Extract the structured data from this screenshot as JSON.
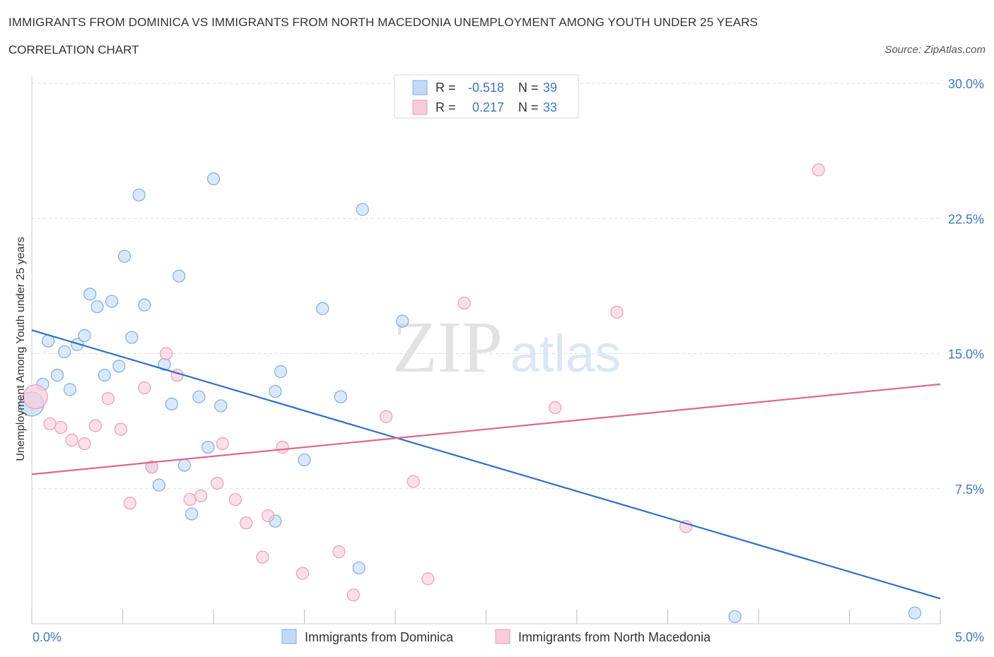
{
  "header": {
    "title": "IMMIGRANTS FROM DOMINICA VS IMMIGRANTS FROM NORTH MACEDONIA UNEMPLOYMENT AMONG YOUTH UNDER 25 YEARS",
    "subtitle": "CORRELATION CHART",
    "source": "Source: ZipAtlas.com"
  },
  "watermark": {
    "zip": "ZIP",
    "atlas": "atlas"
  },
  "colors": {
    "blue": "#7aaee6",
    "blue_fill": "#c2d9f5",
    "blue_line": "#2f6fcc",
    "pink": "#ee9ab5",
    "pink_fill": "#f8ccda",
    "pink_line": "#e0668f",
    "tick_label": "#3a78c9",
    "grid": "#dddddd"
  },
  "legend": {
    "rows": [
      {
        "r_label": "R =",
        "r_value": "-0.518",
        "n_label": "N =",
        "n_value": "39"
      },
      {
        "r_label": "R =",
        "r_value": "0.217",
        "n_label": "N =",
        "n_value": "33"
      }
    ]
  },
  "chart_data": {
    "type": "scatter",
    "title": "IMMIGRANTS FROM DOMINICA VS IMMIGRANTS FROM NORTH MACEDONIA UNEMPLOYMENT AMONG YOUTH UNDER 25 YEARS",
    "xlabel": "",
    "ylabel": "Unemployment Among Youth under 25 years",
    "xlim": [
      0,
      5
    ],
    "ylim": [
      0,
      30
    ],
    "x_tick_labels": [
      "0.0%",
      "5.0%"
    ],
    "y_ticks": [
      7.5,
      15.0,
      22.5,
      30.0
    ],
    "y_tick_labels": [
      "7.5%",
      "15.0%",
      "22.5%",
      "30.0%"
    ],
    "grid": true,
    "series": [
      {
        "name": "Immigrants from Dominica",
        "r": -0.518,
        "n": 39,
        "trend": {
          "x": [
            0,
            5
          ],
          "y": [
            16.3,
            1.4
          ]
        },
        "points": [
          {
            "x": 0.0,
            "y": 12.2,
            "big": true
          },
          {
            "x": 0.06,
            "y": 13.3
          },
          {
            "x": 0.09,
            "y": 15.7
          },
          {
            "x": 0.14,
            "y": 13.8
          },
          {
            "x": 0.18,
            "y": 15.1
          },
          {
            "x": 0.21,
            "y": 13.0
          },
          {
            "x": 0.25,
            "y": 15.5
          },
          {
            "x": 0.29,
            "y": 16.0
          },
          {
            "x": 0.32,
            "y": 18.3
          },
          {
            "x": 0.36,
            "y": 17.6
          },
          {
            "x": 0.4,
            "y": 13.8
          },
          {
            "x": 0.44,
            "y": 17.9
          },
          {
            "x": 0.48,
            "y": 14.3
          },
          {
            "x": 0.51,
            "y": 20.4
          },
          {
            "x": 0.55,
            "y": 15.9
          },
          {
            "x": 0.59,
            "y": 23.8
          },
          {
            "x": 0.62,
            "y": 17.7
          },
          {
            "x": 0.66,
            "y": 8.7
          },
          {
            "x": 0.7,
            "y": 7.7
          },
          {
            "x": 0.73,
            "y": 14.4
          },
          {
            "x": 0.77,
            "y": 12.2
          },
          {
            "x": 0.81,
            "y": 19.3
          },
          {
            "x": 0.84,
            "y": 8.8
          },
          {
            "x": 0.88,
            "y": 6.1
          },
          {
            "x": 0.92,
            "y": 12.6
          },
          {
            "x": 0.97,
            "y": 9.8
          },
          {
            "x": 1.0,
            "y": 24.7
          },
          {
            "x": 1.04,
            "y": 12.1
          },
          {
            "x": 1.34,
            "y": 5.7
          },
          {
            "x": 1.34,
            "y": 12.9
          },
          {
            "x": 1.37,
            "y": 14.0
          },
          {
            "x": 1.5,
            "y": 9.1
          },
          {
            "x": 1.6,
            "y": 17.5
          },
          {
            "x": 1.7,
            "y": 12.6
          },
          {
            "x": 1.8,
            "y": 3.1
          },
          {
            "x": 1.82,
            "y": 23.0
          },
          {
            "x": 2.04,
            "y": 16.8
          },
          {
            "x": 3.87,
            "y": 0.4
          },
          {
            "x": 4.86,
            "y": 0.6
          }
        ]
      },
      {
        "name": "Immigrants from North Macedonia",
        "r": 0.217,
        "n": 33,
        "trend": {
          "x": [
            0,
            5
          ],
          "y": [
            8.3,
            13.3
          ]
        },
        "points": [
          {
            "x": 0.02,
            "y": 12.6,
            "big": true
          },
          {
            "x": 0.1,
            "y": 11.1
          },
          {
            "x": 0.16,
            "y": 10.9
          },
          {
            "x": 0.22,
            "y": 10.2
          },
          {
            "x": 0.29,
            "y": 10.0
          },
          {
            "x": 0.35,
            "y": 11.0
          },
          {
            "x": 0.42,
            "y": 12.5
          },
          {
            "x": 0.49,
            "y": 10.8
          },
          {
            "x": 0.54,
            "y": 6.7
          },
          {
            "x": 0.62,
            "y": 13.1
          },
          {
            "x": 0.66,
            "y": 8.7
          },
          {
            "x": 0.74,
            "y": 15.0
          },
          {
            "x": 0.8,
            "y": 13.8
          },
          {
            "x": 0.87,
            "y": 6.9
          },
          {
            "x": 0.93,
            "y": 7.1
          },
          {
            "x": 1.02,
            "y": 7.8
          },
          {
            "x": 1.05,
            "y": 10.0
          },
          {
            "x": 1.12,
            "y": 6.9
          },
          {
            "x": 1.18,
            "y": 5.6
          },
          {
            "x": 1.27,
            "y": 3.7
          },
          {
            "x": 1.3,
            "y": 6.0
          },
          {
            "x": 1.38,
            "y": 9.8
          },
          {
            "x": 1.49,
            "y": 2.8
          },
          {
            "x": 1.69,
            "y": 4.0
          },
          {
            "x": 1.77,
            "y": 1.6
          },
          {
            "x": 1.95,
            "y": 11.5
          },
          {
            "x": 2.1,
            "y": 7.9
          },
          {
            "x": 2.18,
            "y": 2.5
          },
          {
            "x": 2.38,
            "y": 17.8
          },
          {
            "x": 2.88,
            "y": 12.0
          },
          {
            "x": 3.22,
            "y": 17.3
          },
          {
            "x": 3.6,
            "y": 5.4
          },
          {
            "x": 4.33,
            "y": 25.2
          }
        ]
      }
    ]
  },
  "bottom_legend": [
    "Immigrants from Dominica",
    "Immigrants from North Macedonia"
  ]
}
